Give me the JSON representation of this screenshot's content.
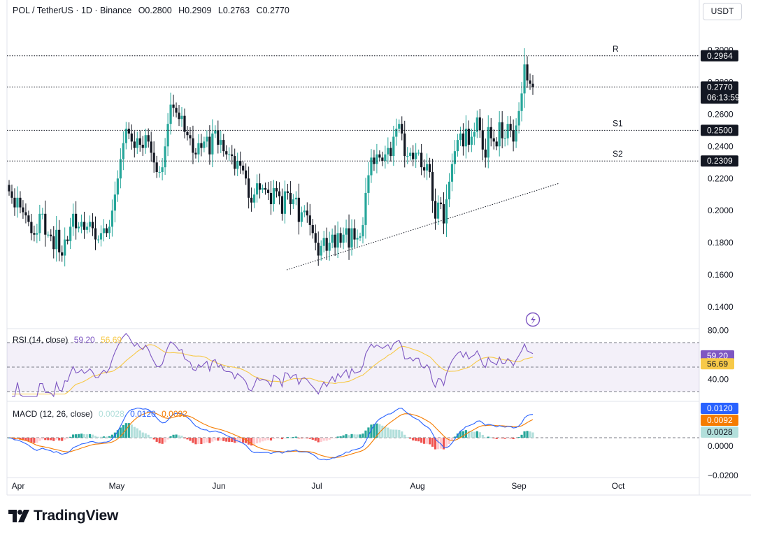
{
  "header": {
    "pair": "POL / TetherUS · 1D · Binance",
    "open": "O0.2800",
    "high": "H0.2909",
    "low": "L0.2763",
    "close": "C0.2770"
  },
  "currency_button": "USDT",
  "brand": "TradingView",
  "colors": {
    "up": "#26a69a",
    "down": "#131722",
    "rsi_line": "#7e57c2",
    "rsi_ma": "#f7c948",
    "macd_line": "#2962ff",
    "signal_line": "#f57c00",
    "hist_pos_strong": "#26a69a",
    "hist_pos_weak": "#b2dfdb",
    "hist_neg_strong": "#ef5350",
    "hist_neg_weak": "#ffcdd2",
    "rsi_band": "#7e57c2"
  },
  "chart_data": [
    {
      "type": "candlestick",
      "x_ticks": [
        "Apr",
        "May",
        "Jun",
        "Jul",
        "Aug",
        "Sep",
        "Oct"
      ],
      "y_ticks": [
        "0.3000",
        "0.2800",
        "0.2600",
        "0.2400",
        "0.2200",
        "0.2000",
        "0.1800",
        "0.1600",
        "0.1400"
      ],
      "ylim": [
        0.13,
        0.305
      ],
      "candles_close": [
        0.212,
        0.208,
        0.202,
        0.208,
        0.202,
        0.199,
        0.197,
        0.193,
        0.186,
        0.185,
        0.186,
        0.198,
        0.198,
        0.185,
        0.185,
        0.184,
        0.176,
        0.188,
        0.174,
        0.172,
        0.182,
        0.181,
        0.19,
        0.198,
        0.189,
        0.19,
        0.193,
        0.188,
        0.19,
        0.193,
        0.189,
        0.182,
        0.182,
        0.186,
        0.189,
        0.186,
        0.19,
        0.2,
        0.21,
        0.22,
        0.232,
        0.242,
        0.251,
        0.248,
        0.243,
        0.239,
        0.245,
        0.241,
        0.239,
        0.247,
        0.243,
        0.236,
        0.23,
        0.224,
        0.224,
        0.227,
        0.24,
        0.254,
        0.266,
        0.264,
        0.261,
        0.257,
        0.259,
        0.249,
        0.247,
        0.245,
        0.236,
        0.235,
        0.242,
        0.239,
        0.243,
        0.246,
        0.235,
        0.248,
        0.25,
        0.241,
        0.244,
        0.237,
        0.235,
        0.235,
        0.234,
        0.226,
        0.231,
        0.228,
        0.225,
        0.22,
        0.208,
        0.205,
        0.21,
        0.217,
        0.213,
        0.214,
        0.213,
        0.211,
        0.204,
        0.214,
        0.212,
        0.209,
        0.198,
        0.212,
        0.211,
        0.204,
        0.207,
        0.208,
        0.193,
        0.199,
        0.2,
        0.197,
        0.191,
        0.186,
        0.18,
        0.172,
        0.178,
        0.183,
        0.175,
        0.18,
        0.185,
        0.177,
        0.186,
        0.18,
        0.185,
        0.189,
        0.177,
        0.189,
        0.182,
        0.183,
        0.184,
        0.191,
        0.211,
        0.222,
        0.233,
        0.229,
        0.235,
        0.233,
        0.231,
        0.235,
        0.239,
        0.234,
        0.246,
        0.251,
        0.254,
        0.248,
        0.234,
        0.234,
        0.236,
        0.232,
        0.236,
        0.236,
        0.227,
        0.225,
        0.229,
        0.224,
        0.206,
        0.195,
        0.205,
        0.204,
        0.192,
        0.207,
        0.218,
        0.229,
        0.237,
        0.244,
        0.248,
        0.24,
        0.251,
        0.241,
        0.246,
        0.249,
        0.258,
        0.25,
        0.238,
        0.233,
        0.252,
        0.245,
        0.243,
        0.24,
        0.255,
        0.245,
        0.245,
        0.254,
        0.25,
        0.243,
        0.253,
        0.262,
        0.273,
        0.291,
        0.281,
        0.279,
        0.277
      ]
    },
    {
      "type": "line",
      "name": "RSI (14, close)",
      "values_shown": [
        "59.20",
        "56.69"
      ],
      "levels": [
        70,
        50,
        30
      ],
      "axis_ticks": [
        "80.00",
        "40.00"
      ]
    },
    {
      "type": "bar",
      "name": "MACD (12, 26, close)",
      "values_shown": [
        "0.0028",
        "0.0120",
        "0.0092"
      ],
      "axis_ticks": [
        "0.0000",
        "−0.0200"
      ]
    }
  ],
  "price_levels": [
    {
      "label": "R",
      "value": "0.2964",
      "price": 0.2964
    },
    {
      "label": "",
      "value": "0.2770",
      "price": 0.277,
      "countdown": "06:13:59"
    },
    {
      "label": "S1",
      "value": "0.2500",
      "price": 0.25
    },
    {
      "label": "S2",
      "value": "0.2309",
      "price": 0.2309
    }
  ],
  "rsi_pane": {
    "title": "RSI (14, close)",
    "rsi_value": "59.20",
    "ma_value": "56.69",
    "tick_top": "80.00",
    "tick_bottom": "40.00"
  },
  "macd_pane": {
    "title": "MACD (12, 26, close)",
    "hist_value": "0.0028",
    "macd_value": "0.0120",
    "signal_value": "0.0092",
    "tick_zero": "0.0000",
    "tick_neg": "−0.0200"
  }
}
